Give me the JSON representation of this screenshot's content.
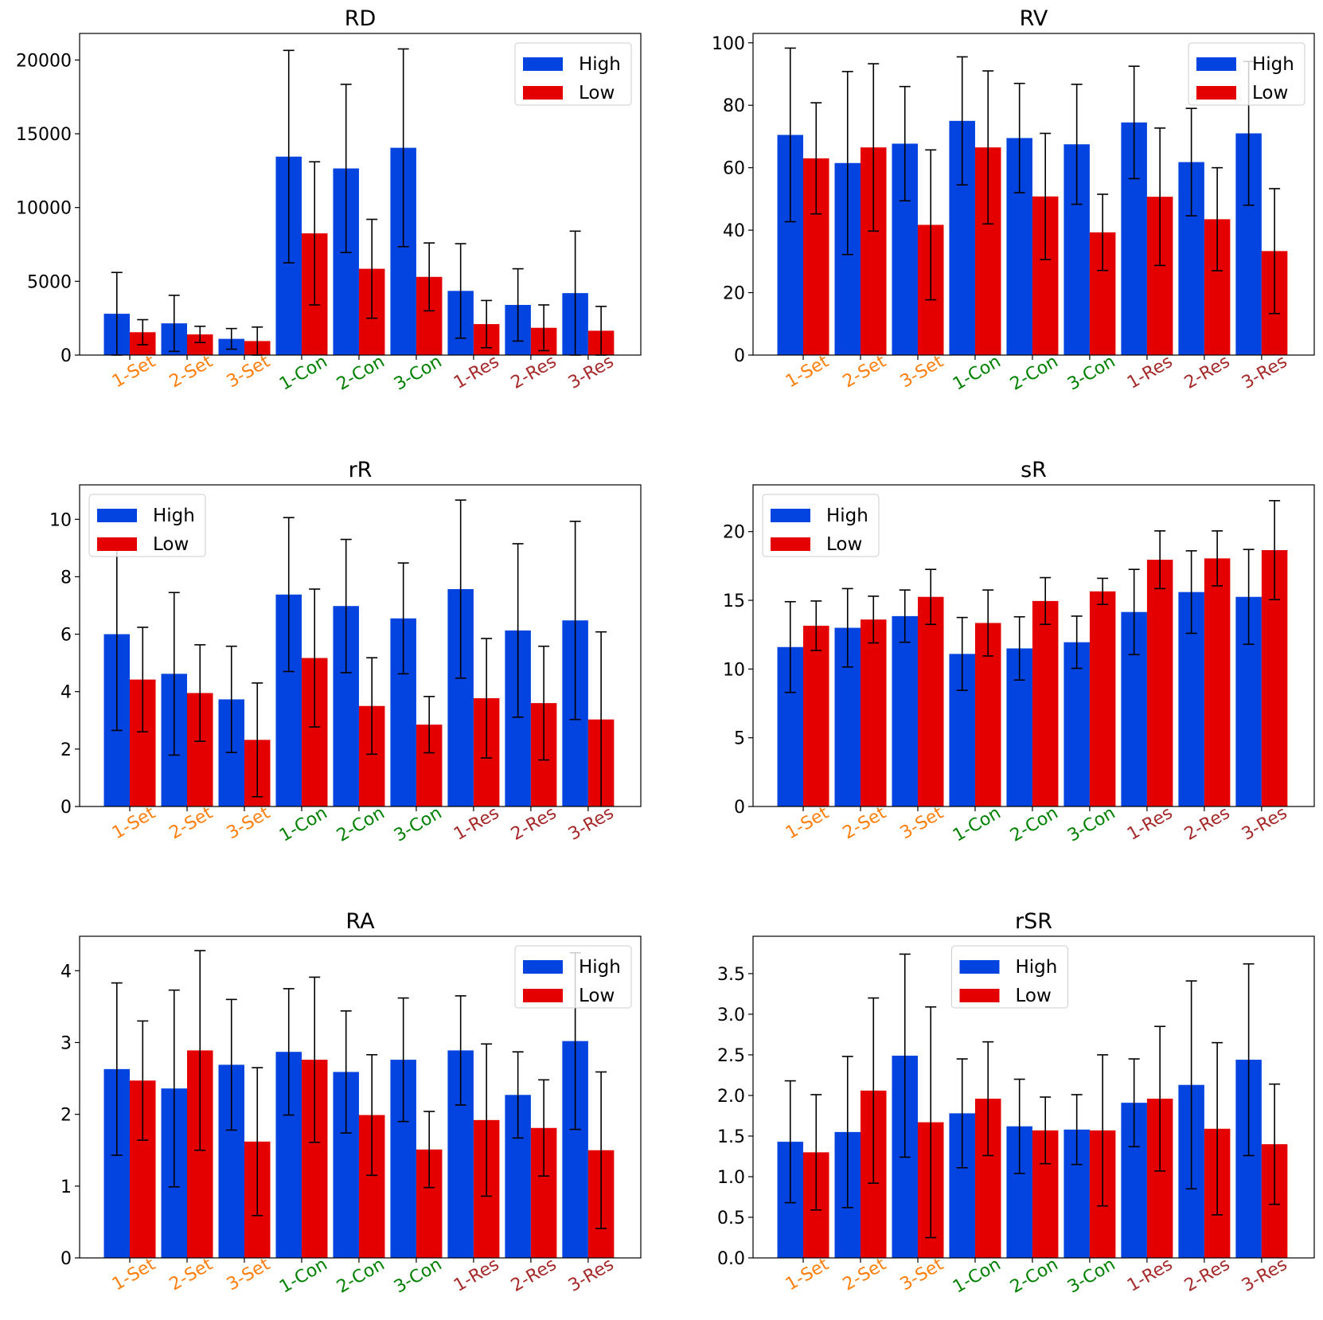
{
  "colors": {
    "high": "#0343df",
    "low": "#e50000",
    "group_colors": [
      "#ff7f0e",
      "#ff7f0e",
      "#ff7f0e",
      "#008000",
      "#008000",
      "#008000",
      "#a52a2a",
      "#a52a2a",
      "#a52a2a"
    ]
  },
  "legend_labels": [
    "High",
    "Low"
  ],
  "chart_data": [
    {
      "type": "bar",
      "title": "RD",
      "categories": [
        "1-Set",
        "2-Set",
        "3-Set",
        "1-Con",
        "2-Con",
        "3-Con",
        "1-Res",
        "2-Res",
        "3-Res"
      ],
      "series": [
        {
          "name": "High",
          "values": [
            2800,
            2150,
            1100,
            13450,
            12650,
            14050,
            4350,
            3400,
            4200
          ],
          "err": [
            2800,
            1900,
            700,
            7200,
            5700,
            6700,
            3200,
            2450,
            4200
          ]
        },
        {
          "name": "Low",
          "values": [
            1550,
            1400,
            950,
            8250,
            5850,
            5300,
            2100,
            1850,
            1650
          ],
          "err": [
            850,
            550,
            950,
            4850,
            3350,
            2300,
            1600,
            1550,
            1650
          ]
        }
      ],
      "ylim": [
        0,
        21800
      ],
      "yticks": [
        0,
        5000,
        10000,
        15000,
        20000
      ],
      "ytick_labels": [
        "0",
        "5000",
        "10000",
        "15000",
        "20000"
      ],
      "legend": "top-right"
    },
    {
      "type": "bar",
      "title": "RV",
      "categories": [
        "1-Set",
        "2-Set",
        "3-Set",
        "1-Con",
        "2-Con",
        "3-Con",
        "1-Res",
        "2-Res",
        "3-Res"
      ],
      "series": [
        {
          "name": "High",
          "values": [
            70.5,
            61.5,
            67.7,
            75.0,
            69.5,
            67.5,
            74.5,
            61.8,
            71.0
          ],
          "err": [
            27.8,
            29.3,
            18.3,
            20.5,
            17.5,
            19.2,
            18.0,
            17.2,
            23.0
          ]
        },
        {
          "name": "Low",
          "values": [
            63.0,
            66.5,
            41.7,
            66.5,
            50.8,
            39.3,
            50.7,
            43.5,
            33.3
          ],
          "err": [
            17.8,
            26.8,
            24.0,
            24.5,
            20.2,
            12.2,
            22.0,
            16.5,
            20.0
          ]
        }
      ],
      "ylim": [
        0,
        103
      ],
      "yticks": [
        0,
        20,
        40,
        60,
        80,
        100
      ],
      "ytick_labels": [
        "0",
        "20",
        "40",
        "60",
        "80",
        "100"
      ],
      "legend": "top-right"
    },
    {
      "type": "bar",
      "title": "rR",
      "categories": [
        "1-Set",
        "2-Set",
        "3-Set",
        "1-Con",
        "2-Con",
        "3-Con",
        "1-Res",
        "2-Res",
        "3-Res"
      ],
      "series": [
        {
          "name": "High",
          "values": [
            6.0,
            4.62,
            3.73,
            7.38,
            6.98,
            6.55,
            7.57,
            6.13,
            6.48
          ],
          "err": [
            3.35,
            2.83,
            1.85,
            2.68,
            2.32,
            1.93,
            3.1,
            3.02,
            3.45
          ]
        },
        {
          "name": "Low",
          "values": [
            4.42,
            3.95,
            2.32,
            5.17,
            3.5,
            2.85,
            3.77,
            3.6,
            3.03
          ],
          "err": [
            1.82,
            1.68,
            1.98,
            2.4,
            1.68,
            0.98,
            2.08,
            1.98,
            3.05
          ]
        }
      ],
      "ylim": [
        0,
        11.2
      ],
      "yticks": [
        0,
        2,
        4,
        6,
        8,
        10
      ],
      "ytick_labels": [
        "0",
        "2",
        "4",
        "6",
        "8",
        "10"
      ],
      "legend": "top-left"
    },
    {
      "type": "bar",
      "title": "sR",
      "categories": [
        "1-Set",
        "2-Set",
        "3-Set",
        "1-Con",
        "2-Con",
        "3-Con",
        "1-Res",
        "2-Res",
        "3-Res"
      ],
      "series": [
        {
          "name": "High",
          "values": [
            11.6,
            13.0,
            13.85,
            11.1,
            11.5,
            11.95,
            14.15,
            15.6,
            15.25
          ],
          "err": [
            3.3,
            2.85,
            1.9,
            2.65,
            2.3,
            1.9,
            3.1,
            3.0,
            3.45
          ]
        },
        {
          "name": "Low",
          "values": [
            13.15,
            13.6,
            15.25,
            13.35,
            14.95,
            15.65,
            17.95,
            18.05,
            18.65
          ],
          "err": [
            1.8,
            1.7,
            2.0,
            2.4,
            1.7,
            0.95,
            2.1,
            2.0,
            3.6
          ]
        }
      ],
      "ylim": [
        0,
        23.4
      ],
      "yticks": [
        0,
        5,
        10,
        15,
        20
      ],
      "ytick_labels": [
        "0",
        "5",
        "10",
        "15",
        "20"
      ],
      "legend": "top-left"
    },
    {
      "type": "bar",
      "title": "RA",
      "categories": [
        "1-Set",
        "2-Set",
        "3-Set",
        "1-Con",
        "2-Con",
        "3-Con",
        "1-Res",
        "2-Res",
        "3-Res"
      ],
      "series": [
        {
          "name": "High",
          "values": [
            2.63,
            2.36,
            2.69,
            2.87,
            2.59,
            2.76,
            2.89,
            2.27,
            3.02
          ],
          "err": [
            1.2,
            1.37,
            0.91,
            0.88,
            0.85,
            0.86,
            0.76,
            0.6,
            1.23
          ]
        },
        {
          "name": "Low",
          "values": [
            2.47,
            2.89,
            1.62,
            2.76,
            1.99,
            1.51,
            1.92,
            1.81,
            1.5
          ],
          "err": [
            0.83,
            1.39,
            1.03,
            1.15,
            0.84,
            0.53,
            1.06,
            0.67,
            1.09
          ]
        }
      ],
      "ylim": [
        0,
        4.48
      ],
      "yticks": [
        0,
        1,
        2,
        3,
        4
      ],
      "ytick_labels": [
        "0",
        "1",
        "2",
        "3",
        "4"
      ],
      "legend": "top-right"
    },
    {
      "type": "bar",
      "title": "rSR",
      "categories": [
        "1-Set",
        "2-Set",
        "3-Set",
        "1-Con",
        "2-Con",
        "3-Con",
        "1-Res",
        "2-Res",
        "3-Res"
      ],
      "series": [
        {
          "name": "High",
          "values": [
            1.43,
            1.55,
            2.49,
            1.78,
            1.62,
            1.58,
            1.91,
            2.13,
            2.44
          ],
          "err": [
            0.75,
            0.93,
            1.25,
            0.67,
            0.58,
            0.43,
            0.54,
            1.28,
            1.18
          ]
        },
        {
          "name": "Low",
          "values": [
            1.3,
            2.06,
            1.67,
            1.96,
            1.57,
            1.57,
            1.96,
            1.59,
            1.4
          ],
          "err": [
            0.71,
            1.14,
            1.42,
            0.7,
            0.41,
            0.93,
            0.89,
            1.06,
            0.74
          ]
        }
      ],
      "ylim": [
        0,
        3.96
      ],
      "yticks": [
        0,
        0.5,
        1.0,
        1.5,
        2.0,
        2.5,
        3.0,
        3.5
      ],
      "ytick_labels": [
        "0.0",
        "0.5",
        "1.0",
        "1.5",
        "2.0",
        "2.5",
        "3.0",
        "3.5"
      ],
      "legend": "upper-center"
    }
  ]
}
